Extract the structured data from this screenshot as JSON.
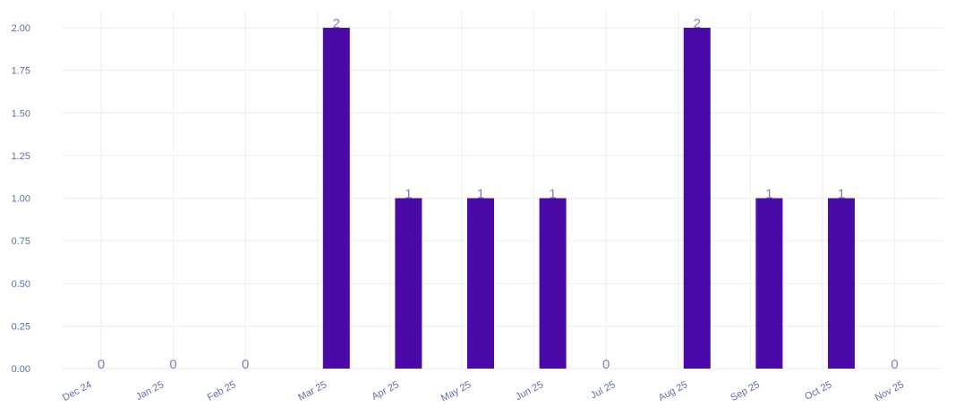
{
  "chart_data": {
    "type": "bar",
    "categories": [
      "Dec 24",
      "Jan 25",
      "Feb 25",
      "Mar 25",
      "Apr 25",
      "May 25",
      "Jun 25",
      "Jul 25",
      "Aug 25",
      "Sep 25",
      "Oct 25",
      "Nov 25"
    ],
    "values": [
      0,
      0,
      0,
      2,
      1,
      1,
      1,
      0,
      2,
      1,
      1,
      0
    ],
    "ylim": [
      0,
      2.1
    ],
    "yticks": [
      "0.00",
      "0.25",
      "0.50",
      "0.75",
      "1.00",
      "1.25",
      "1.50",
      "1.75",
      "2.00"
    ],
    "grid": true,
    "legend": "none",
    "bar_color": "#4a0aa8",
    "label_color": "#7b84b6",
    "tick_color": "#5d6ea8"
  }
}
